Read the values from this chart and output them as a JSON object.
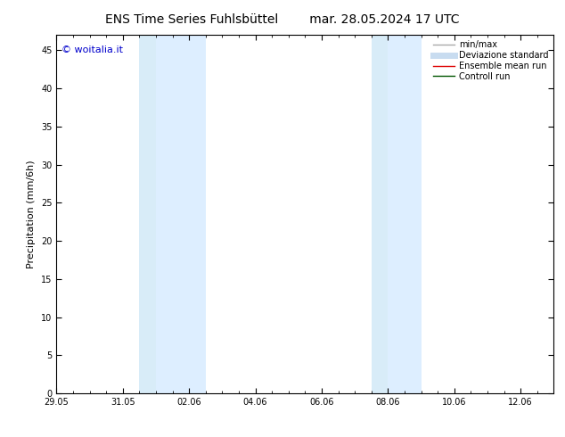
{
  "title_left": "ENS Time Series Fuhlsbüttel",
  "title_right": "mar. 28.05.2024 17 UTC",
  "ylabel": "Precipitation (mm/6h)",
  "watermark": "© woitalia.it",
  "x_tick_labels": [
    "29.05",
    "31.05",
    "02.06",
    "04.06",
    "06.06",
    "08.06",
    "10.06",
    "12.06"
  ],
  "x_tick_positions": [
    0,
    2,
    4,
    6,
    8,
    10,
    12,
    14
  ],
  "xlim": [
    0,
    15
  ],
  "ylim": [
    0,
    47
  ],
  "yticks": [
    0,
    5,
    10,
    15,
    20,
    25,
    30,
    35,
    40,
    45
  ],
  "bg_color": "#ffffff",
  "shaded_regions": [
    {
      "x_start": 2.5,
      "x_end": 3.0,
      "color": "#d8ecf8"
    },
    {
      "x_start": 3.0,
      "x_end": 4.5,
      "color": "#ddeeff"
    },
    {
      "x_start": 9.5,
      "x_end": 10.0,
      "color": "#d8ecf8"
    },
    {
      "x_start": 10.0,
      "x_end": 11.0,
      "color": "#ddeeff"
    }
  ],
  "legend_entries": [
    {
      "label": "min/max",
      "color": "#aaaaaa",
      "lw": 1.0,
      "linestyle": "-"
    },
    {
      "label": "Deviazione standard",
      "color": "#c8dcf0",
      "lw": 5,
      "linestyle": "-"
    },
    {
      "label": "Ensemble mean run",
      "color": "#dd0000",
      "lw": 1.0,
      "linestyle": "-"
    },
    {
      "label": "Controll run",
      "color": "#005500",
      "lw": 1.0,
      "linestyle": "-"
    }
  ],
  "font_size_title": 10,
  "font_size_labels": 8,
  "font_size_ticks": 7,
  "font_size_legend": 7,
  "font_size_watermark": 8
}
